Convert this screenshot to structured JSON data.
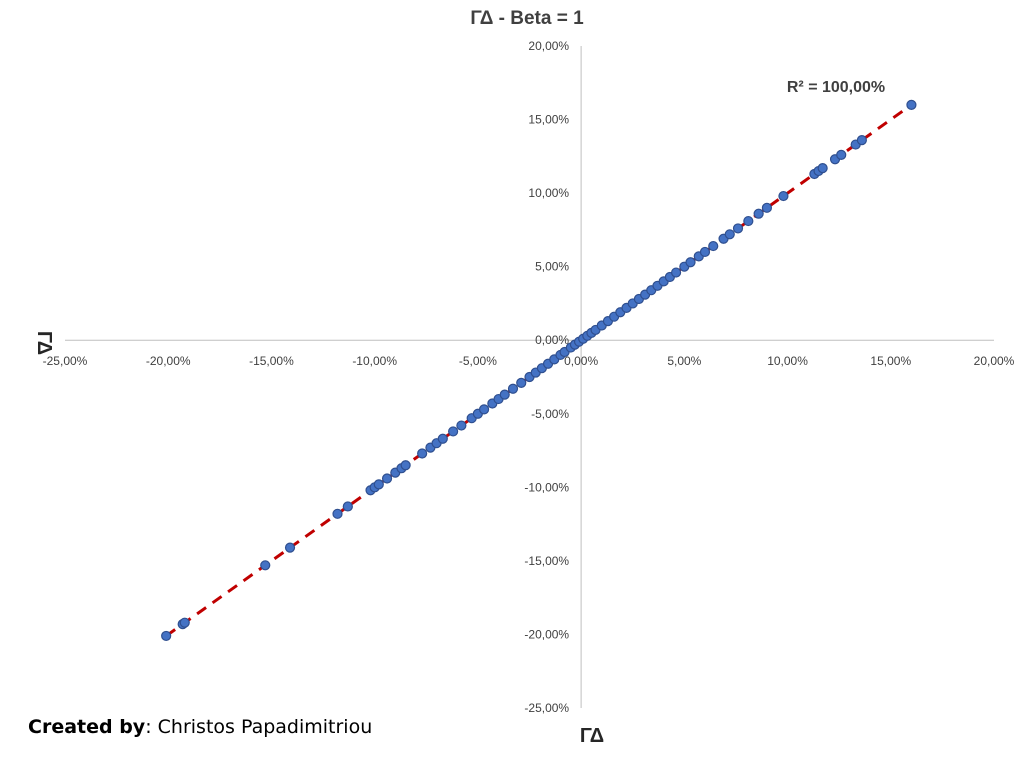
{
  "chart_data": {
    "type": "scatter",
    "title": "ΓΔ - Beta = 1",
    "xlabel": "ΓΔ",
    "ylabel": "ΓΔ",
    "xlim": [
      -25,
      20
    ],
    "ylim": [
      -25,
      20
    ],
    "x_ticks": [
      "-25,00%",
      "-20,00%",
      "-15,00%",
      "-10,00%",
      "-5,00%",
      "0,00%",
      "5,00%",
      "10,00%",
      "15,00%",
      "20,00%"
    ],
    "y_ticks": [
      "20,00%",
      "15,00%",
      "10,00%",
      "5,00%",
      "0,00%",
      "-5,00%",
      "-10,00%",
      "-15,00%",
      "-20,00%",
      "-25,00%"
    ],
    "x_tick_values": [
      -25,
      -20,
      -15,
      -10,
      -5,
      0,
      5,
      10,
      15,
      20
    ],
    "y_tick_values": [
      20,
      15,
      10,
      5,
      0,
      -5,
      -10,
      -15,
      -20,
      -25
    ],
    "annotation": "R² = 100,00%",
    "grid": false,
    "legend": "none",
    "series": [
      {
        "marker_color": "#4472c4",
        "marker_edge": "#2f4f8f",
        "points": [
          [
            -20.1,
            -20.1
          ],
          [
            -19.3,
            -19.3
          ],
          [
            -19.2,
            -19.2
          ],
          [
            -15.3,
            -15.3
          ],
          [
            -14.1,
            -14.1
          ],
          [
            -11.8,
            -11.8
          ],
          [
            -11.3,
            -11.3
          ],
          [
            -10.2,
            -10.2
          ],
          [
            -10.0,
            -10.0
          ],
          [
            -9.8,
            -9.8
          ],
          [
            -9.4,
            -9.4
          ],
          [
            -9.0,
            -9.0
          ],
          [
            -8.7,
            -8.7
          ],
          [
            -8.5,
            -8.5
          ],
          [
            -7.7,
            -7.7
          ],
          [
            -7.3,
            -7.3
          ],
          [
            -7.0,
            -7.0
          ],
          [
            -6.7,
            -6.7
          ],
          [
            -6.2,
            -6.2
          ],
          [
            -5.8,
            -5.8
          ],
          [
            -5.3,
            -5.3
          ],
          [
            -5.0,
            -5.0
          ],
          [
            -4.7,
            -4.7
          ],
          [
            -4.3,
            -4.3
          ],
          [
            -4.0,
            -4.0
          ],
          [
            -3.7,
            -3.7
          ],
          [
            -3.3,
            -3.3
          ],
          [
            -2.9,
            -2.9
          ],
          [
            -2.5,
            -2.5
          ],
          [
            -2.2,
            -2.2
          ],
          [
            -1.9,
            -1.9
          ],
          [
            -1.6,
            -1.6
          ],
          [
            -1.3,
            -1.3
          ],
          [
            -1.0,
            -1.0
          ],
          [
            -0.8,
            -0.8
          ],
          [
            -0.5,
            -0.5
          ],
          [
            -0.3,
            -0.3
          ],
          [
            -0.1,
            -0.1
          ],
          [
            0.1,
            0.1
          ],
          [
            0.3,
            0.3
          ],
          [
            0.5,
            0.5
          ],
          [
            0.7,
            0.7
          ],
          [
            1.0,
            1.0
          ],
          [
            1.3,
            1.3
          ],
          [
            1.6,
            1.6
          ],
          [
            1.9,
            1.9
          ],
          [
            2.2,
            2.2
          ],
          [
            2.5,
            2.5
          ],
          [
            2.8,
            2.8
          ],
          [
            3.1,
            3.1
          ],
          [
            3.4,
            3.4
          ],
          [
            3.7,
            3.7
          ],
          [
            4.0,
            4.0
          ],
          [
            4.3,
            4.3
          ],
          [
            4.6,
            4.6
          ],
          [
            5.0,
            5.0
          ],
          [
            5.3,
            5.3
          ],
          [
            5.7,
            5.7
          ],
          [
            6.0,
            6.0
          ],
          [
            6.4,
            6.4
          ],
          [
            6.9,
            6.9
          ],
          [
            7.2,
            7.2
          ],
          [
            7.6,
            7.6
          ],
          [
            8.1,
            8.1
          ],
          [
            8.6,
            8.6
          ],
          [
            9.0,
            9.0
          ],
          [
            9.8,
            9.8
          ],
          [
            11.3,
            11.3
          ],
          [
            11.5,
            11.5
          ],
          [
            11.7,
            11.7
          ],
          [
            12.3,
            12.3
          ],
          [
            12.6,
            12.6
          ],
          [
            13.3,
            13.3
          ],
          [
            13.6,
            13.6
          ],
          [
            16.0,
            16.0
          ]
        ]
      }
    ],
    "trendline": {
      "type": "linear",
      "style": "dashed",
      "color": "#c00000",
      "from": [
        -20.1,
        -20.1
      ],
      "to": [
        16.0,
        16.0
      ]
    }
  },
  "credit": {
    "label": "Created by",
    "separator": ": ",
    "author": "Christos Papadimitriou"
  }
}
